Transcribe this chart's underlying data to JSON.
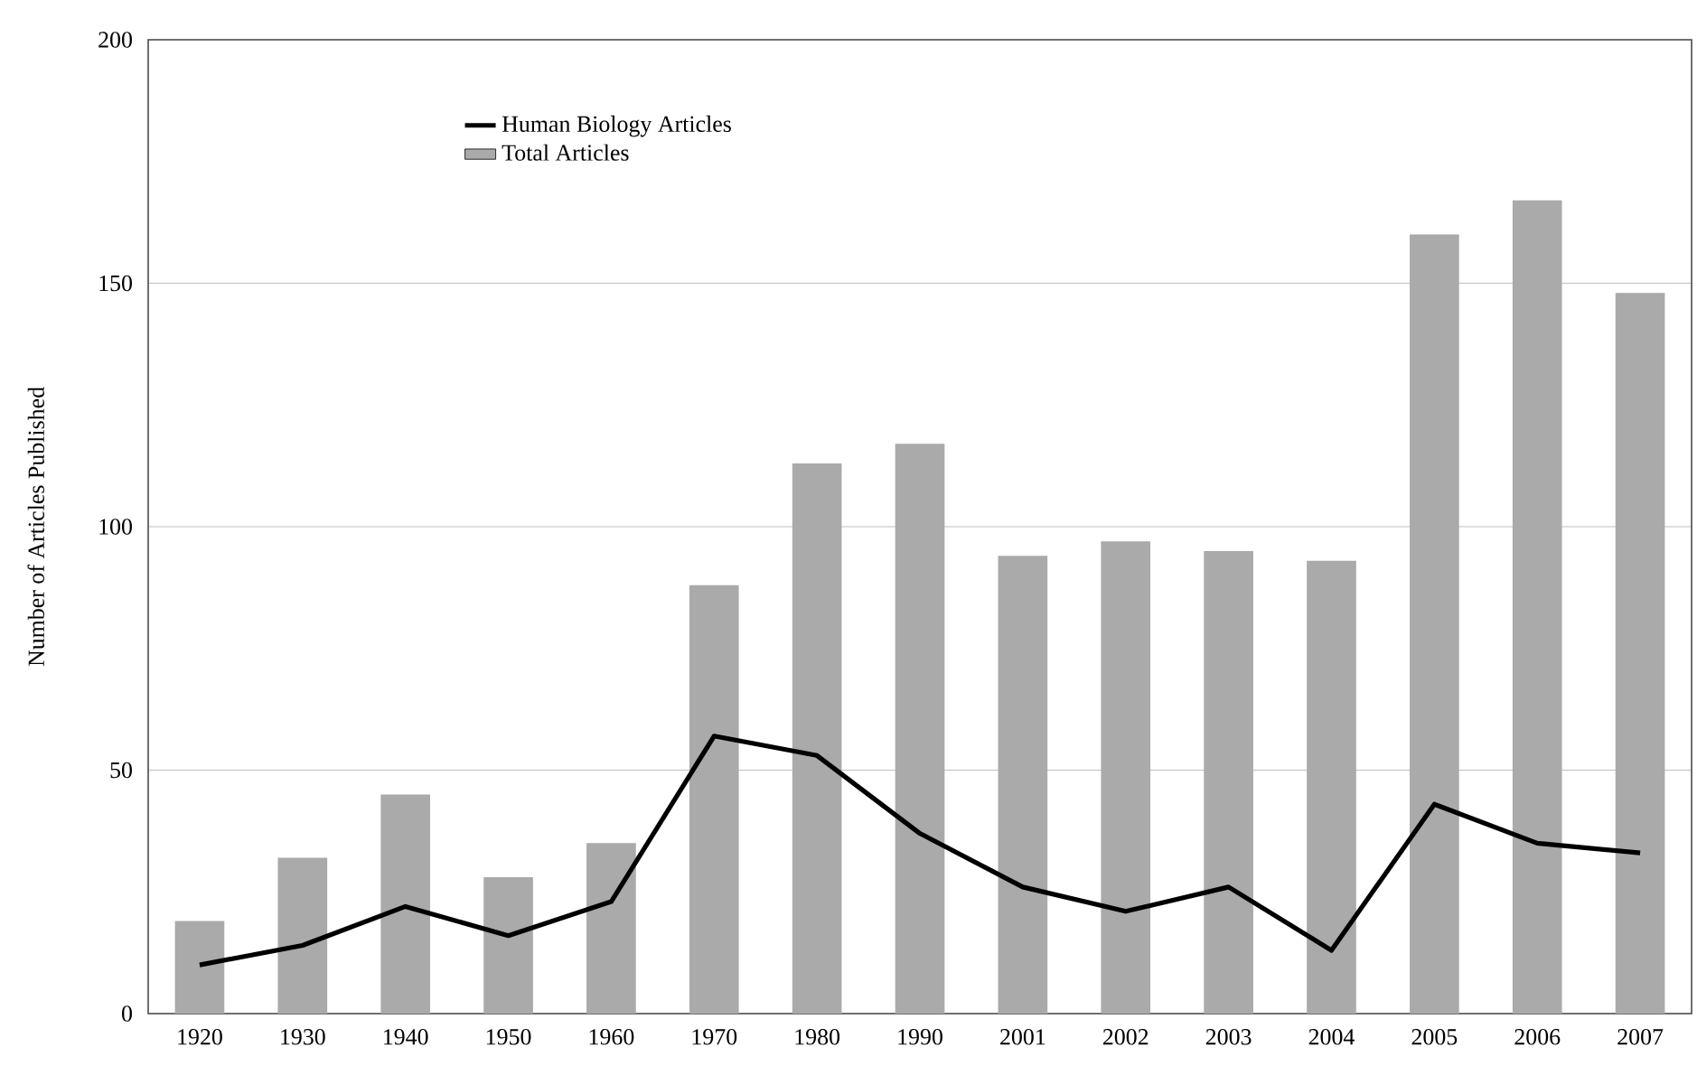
{
  "chart_data": {
    "type": "bar",
    "ylabel": "Number of Articles Published",
    "categories": [
      "1920",
      "1930",
      "1940",
      "1950",
      "1960",
      "1970",
      "1980",
      "1990",
      "2001",
      "2002",
      "2003",
      "2004",
      "2005",
      "2006",
      "2007"
    ],
    "series": [
      {
        "name": "Human Biology Articles",
        "type": "line",
        "color": "#000000",
        "values": [
          10,
          14,
          22,
          16,
          23,
          57,
          53,
          37,
          26,
          21,
          26,
          13,
          43,
          35,
          33
        ]
      },
      {
        "name": "Total Articles",
        "color": "#aaaaaa",
        "values": [
          19,
          32,
          45,
          28,
          35,
          88,
          113,
          117,
          94,
          97,
          95,
          93,
          160,
          167,
          148
        ]
      }
    ],
    "ylim": [
      0,
      200
    ],
    "yticks": [
      0,
      50,
      100,
      150,
      200
    ],
    "grid": "y",
    "legend": "top left",
    "marker": "none",
    "line_style": "solid"
  }
}
